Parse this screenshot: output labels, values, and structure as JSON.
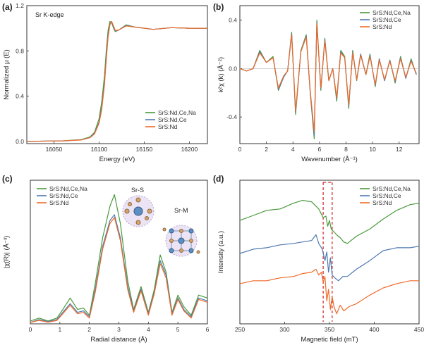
{
  "series_colors": [
    "#4a9a3c",
    "#4e79b0",
    "#ef6a2a"
  ],
  "series_names": [
    "SrS:Nd,Ce,Na",
    "SrS:Nd,Ce",
    "SrS:Nd"
  ],
  "chart_data": [
    {
      "panel": "(a)",
      "type": "line",
      "annotation": "Sr K-edge",
      "xlabel": "Energy (eV)",
      "ylabel": "Normalized μ (E)",
      "xlim": [
        16020,
        16220
      ],
      "ylim": [
        -0.02,
        1.2
      ],
      "xticks": [
        "16050",
        "16100",
        "16150",
        "16200"
      ],
      "yticks": [
        "0.0",
        "0.4",
        "0.8",
        "1.2"
      ],
      "legend_position": "bottom-right",
      "series": [
        {
          "name": "SrS:Nd,Ce,Na",
          "x": [
            16020,
            16060,
            16080,
            16090,
            16095,
            16100,
            16103,
            16106,
            16108,
            16110,
            16112,
            16114,
            16116,
            16118,
            16122,
            16130,
            16140,
            16160,
            16180,
            16200,
            16220
          ],
          "y": [
            0,
            0.005,
            0.015,
            0.04,
            0.08,
            0.2,
            0.35,
            0.58,
            0.8,
            0.98,
            1.06,
            1.05,
            1.0,
            0.97,
            0.985,
            1.03,
            1.01,
            0.99,
            1.005,
            1.0,
            1.0
          ]
        },
        {
          "name": "SrS:Nd,Ce",
          "x": [
            16020,
            16060,
            16080,
            16090,
            16095,
            16100,
            16103,
            16106,
            16108,
            16110,
            16112,
            16114,
            16116,
            16118,
            16122,
            16130,
            16140,
            16160,
            16180,
            16200,
            16220
          ],
          "y": [
            0,
            0.004,
            0.013,
            0.035,
            0.07,
            0.17,
            0.3,
            0.52,
            0.74,
            0.94,
            1.04,
            1.06,
            1.01,
            0.975,
            0.985,
            1.025,
            1.01,
            0.99,
            1.005,
            1.0,
            1.0
          ]
        },
        {
          "name": "SrS:Nd",
          "x": [
            16020,
            16060,
            16080,
            16090,
            16095,
            16100,
            16103,
            16106,
            16108,
            16110,
            16112,
            16114,
            16116,
            16118,
            16122,
            16130,
            16140,
            16160,
            16180,
            16200,
            16220
          ],
          "y": [
            0,
            0.004,
            0.012,
            0.032,
            0.065,
            0.16,
            0.28,
            0.5,
            0.72,
            0.92,
            1.03,
            1.06,
            1.02,
            0.98,
            0.985,
            1.02,
            1.01,
            0.99,
            1.005,
            1.0,
            1.0
          ]
        }
      ]
    },
    {
      "panel": "(b)",
      "type": "line",
      "xlabel": "Wavenumber (Å⁻¹)",
      "ylabel": "k²χ (k) (Å⁻²)",
      "xlim": [
        0,
        13.5
      ],
      "ylim": [
        -0.62,
        0.52
      ],
      "xticks": [
        "0",
        "2",
        "4",
        "6",
        "8",
        "10",
        "12"
      ],
      "yticks": [
        "-0.4",
        "0.0",
        "0.4"
      ],
      "legend_position": "top-right",
      "series": [
        {
          "name": "SrS:Nd,Ce,Na",
          "x": [
            0,
            0.5,
            1.0,
            1.5,
            2.0,
            2.5,
            2.9,
            3.3,
            3.6,
            3.9,
            4.2,
            4.6,
            5.0,
            5.3,
            5.6,
            5.8,
            6.1,
            6.4,
            6.7,
            7.0,
            7.3,
            7.6,
            7.9,
            8.2,
            8.5,
            8.8,
            9.1,
            9.5,
            9.8,
            10.2,
            10.5,
            10.9,
            11.3,
            11.7,
            12.1,
            12.5,
            12.9,
            13.3
          ],
          "y": [
            0,
            -0.02,
            0.0,
            0.15,
            0.05,
            0.1,
            -0.18,
            -0.07,
            -0.02,
            0.3,
            -0.38,
            0.15,
            0.28,
            -0.2,
            -0.58,
            0.4,
            -0.18,
            0.25,
            -0.1,
            0.0,
            -0.27,
            0.15,
            0.1,
            -0.33,
            0.15,
            -0.1,
            0.12,
            -0.05,
            0.12,
            -0.15,
            0.08,
            -0.1,
            0.07,
            -0.12,
            0.1,
            -0.08,
            0.08,
            -0.05
          ]
        },
        {
          "name": "SrS:Nd,Ce",
          "x": [
            0,
            0.5,
            1.0,
            1.5,
            2.0,
            2.5,
            2.9,
            3.3,
            3.6,
            3.9,
            4.2,
            4.6,
            5.0,
            5.3,
            5.6,
            5.8,
            6.1,
            6.4,
            6.7,
            7.0,
            7.3,
            7.6,
            7.9,
            8.2,
            8.5,
            8.8,
            9.1,
            9.5,
            9.8,
            10.2,
            10.5,
            10.9,
            11.3,
            11.7,
            12.1,
            12.5,
            12.9,
            13.3
          ],
          "y": [
            0,
            -0.02,
            0.0,
            0.14,
            0.05,
            0.09,
            -0.17,
            -0.07,
            -0.02,
            0.29,
            -0.36,
            0.14,
            0.27,
            -0.19,
            -0.55,
            0.38,
            -0.17,
            0.24,
            -0.1,
            0.0,
            -0.25,
            0.14,
            0.09,
            -0.31,
            0.14,
            -0.09,
            0.12,
            -0.05,
            0.11,
            -0.14,
            0.08,
            -0.1,
            0.07,
            -0.11,
            0.09,
            -0.08,
            0.07,
            -0.05
          ]
        },
        {
          "name": "SrS:Nd",
          "x": [
            0,
            0.5,
            1.0,
            1.5,
            2.0,
            2.5,
            2.9,
            3.3,
            3.6,
            3.9,
            4.2,
            4.6,
            5.0,
            5.3,
            5.6,
            5.8,
            6.1,
            6.4,
            6.7,
            7.0,
            7.3,
            7.6,
            7.9,
            8.2,
            8.5,
            8.8,
            9.1,
            9.5,
            9.8,
            10.2,
            10.5,
            10.9,
            11.3,
            11.7,
            12.1,
            12.5,
            12.9,
            13.3
          ],
          "y": [
            0,
            -0.02,
            0.0,
            0.13,
            0.05,
            0.09,
            -0.16,
            -0.06,
            -0.02,
            0.28,
            -0.35,
            0.14,
            0.26,
            -0.18,
            -0.52,
            0.37,
            -0.16,
            0.23,
            -0.1,
            0.0,
            -0.24,
            0.13,
            0.09,
            -0.3,
            0.13,
            -0.09,
            0.11,
            -0.05,
            0.1,
            -0.13,
            0.07,
            -0.09,
            0.06,
            -0.1,
            0.08,
            -0.07,
            0.06,
            -0.04
          ]
        }
      ]
    },
    {
      "panel": "(c)",
      "type": "line",
      "xlabel": "Radial distance (Å)",
      "ylabel": "|χ(R)| (Å⁻³)",
      "xlim": [
        0,
        6
      ],
      "ylim": [
        0,
        0.5
      ],
      "xticks": [
        "0",
        "1",
        "2",
        "3",
        "4",
        "5",
        "6"
      ],
      "yticks": [],
      "legend_position": "top-left",
      "annotations": [
        "Sr-S",
        "Sr-M"
      ],
      "series": [
        {
          "name": "SrS:Nd,Ce,Na",
          "x": [
            0,
            0.3,
            0.6,
            0.9,
            1.1,
            1.35,
            1.6,
            1.8,
            2.0,
            2.2,
            2.45,
            2.7,
            2.85,
            3.05,
            3.3,
            3.5,
            3.75,
            4.0,
            4.2,
            4.4,
            4.6,
            4.8,
            5.0,
            5.2,
            5.45,
            5.7,
            6.0
          ],
          "y": [
            0.01,
            0.02,
            0.01,
            0.02,
            0.05,
            0.09,
            0.05,
            0.055,
            0.03,
            0.14,
            0.3,
            0.41,
            0.45,
            0.35,
            0.15,
            0.05,
            0.13,
            0.04,
            0.12,
            0.24,
            0.18,
            0.04,
            0.1,
            0.06,
            0.03,
            0.1,
            0.09
          ]
        },
        {
          "name": "SrS:Nd,Ce",
          "x": [
            0,
            0.3,
            0.6,
            0.9,
            1.1,
            1.35,
            1.6,
            1.8,
            2.0,
            2.2,
            2.45,
            2.7,
            2.85,
            3.05,
            3.3,
            3.5,
            3.75,
            4.0,
            4.2,
            4.4,
            4.6,
            4.8,
            5.0,
            5.2,
            5.45,
            5.7,
            6.0
          ],
          "y": [
            0.005,
            0.015,
            0.008,
            0.015,
            0.04,
            0.07,
            0.04,
            0.045,
            0.025,
            0.12,
            0.27,
            0.36,
            0.38,
            0.3,
            0.13,
            0.045,
            0.12,
            0.035,
            0.11,
            0.22,
            0.17,
            0.035,
            0.09,
            0.05,
            0.025,
            0.09,
            0.08
          ]
        },
        {
          "name": "SrS:Nd",
          "x": [
            0,
            0.3,
            0.6,
            0.9,
            1.1,
            1.35,
            1.6,
            1.8,
            2.0,
            2.2,
            2.45,
            2.7,
            2.85,
            3.05,
            3.3,
            3.5,
            3.75,
            4.0,
            4.2,
            4.4,
            4.6,
            4.8,
            5.0,
            5.2,
            5.45,
            5.7,
            6.0
          ],
          "y": [
            0.005,
            0.012,
            0.006,
            0.012,
            0.035,
            0.065,
            0.035,
            0.04,
            0.02,
            0.11,
            0.26,
            0.35,
            0.37,
            0.29,
            0.12,
            0.04,
            0.115,
            0.03,
            0.105,
            0.21,
            0.16,
            0.03,
            0.085,
            0.045,
            0.02,
            0.085,
            0.075
          ]
        }
      ]
    },
    {
      "panel": "(d)",
      "type": "line",
      "xlabel": "Magnetic field (mT)",
      "ylabel": "Intensity (a.u.)",
      "xlim": [
        250,
        450
      ],
      "ylim": [
        0,
        1
      ],
      "xticks": [
        "250",
        "300",
        "350",
        "400",
        "450"
      ],
      "yticks": [],
      "legend_position": "top-right",
      "dashed_lines_x": [
        343,
        353
      ],
      "series": [
        {
          "name": "SrS:Nd,Ce,Na",
          "x": [
            250,
            265,
            280,
            295,
            310,
            320,
            330,
            338,
            343,
            346,
            348,
            350,
            352,
            355,
            358,
            362,
            366,
            370,
            380,
            395,
            410,
            425,
            440,
            450
          ],
          "y": [
            0.72,
            0.755,
            0.79,
            0.8,
            0.84,
            0.86,
            0.85,
            0.8,
            0.74,
            0.75,
            0.68,
            0.72,
            0.66,
            0.64,
            0.62,
            0.6,
            0.57,
            0.56,
            0.61,
            0.66,
            0.73,
            0.79,
            0.83,
            0.84
          ]
        },
        {
          "name": "SrS:Nd,Ce",
          "x": [
            250,
            265,
            280,
            295,
            310,
            320,
            330,
            335,
            338,
            342,
            345,
            347,
            349,
            351,
            353,
            356,
            360,
            365,
            370,
            380,
            395,
            410,
            425,
            440,
            450
          ],
          "y": [
            0.49,
            0.52,
            0.53,
            0.55,
            0.56,
            0.57,
            0.58,
            0.62,
            0.56,
            0.52,
            0.44,
            0.5,
            0.36,
            0.46,
            0.34,
            0.32,
            0.3,
            0.33,
            0.33,
            0.38,
            0.44,
            0.51,
            0.53,
            0.53,
            0.54
          ]
        },
        {
          "name": "SrS:Nd",
          "x": [
            250,
            265,
            280,
            295,
            310,
            320,
            330,
            335,
            338,
            341,
            343,
            345,
            347,
            349,
            351,
            353,
            355,
            358,
            362,
            366,
            372,
            380,
            395,
            410,
            425,
            440,
            450
          ],
          "y": [
            0.28,
            0.3,
            0.3,
            0.32,
            0.33,
            0.35,
            0.36,
            0.38,
            0.34,
            0.36,
            0.29,
            0.33,
            0.16,
            0.24,
            0.1,
            0.19,
            0.12,
            0.07,
            0.13,
            0.09,
            0.12,
            0.14,
            0.2,
            0.25,
            0.28,
            0.3,
            0.3
          ]
        }
      ]
    }
  ]
}
